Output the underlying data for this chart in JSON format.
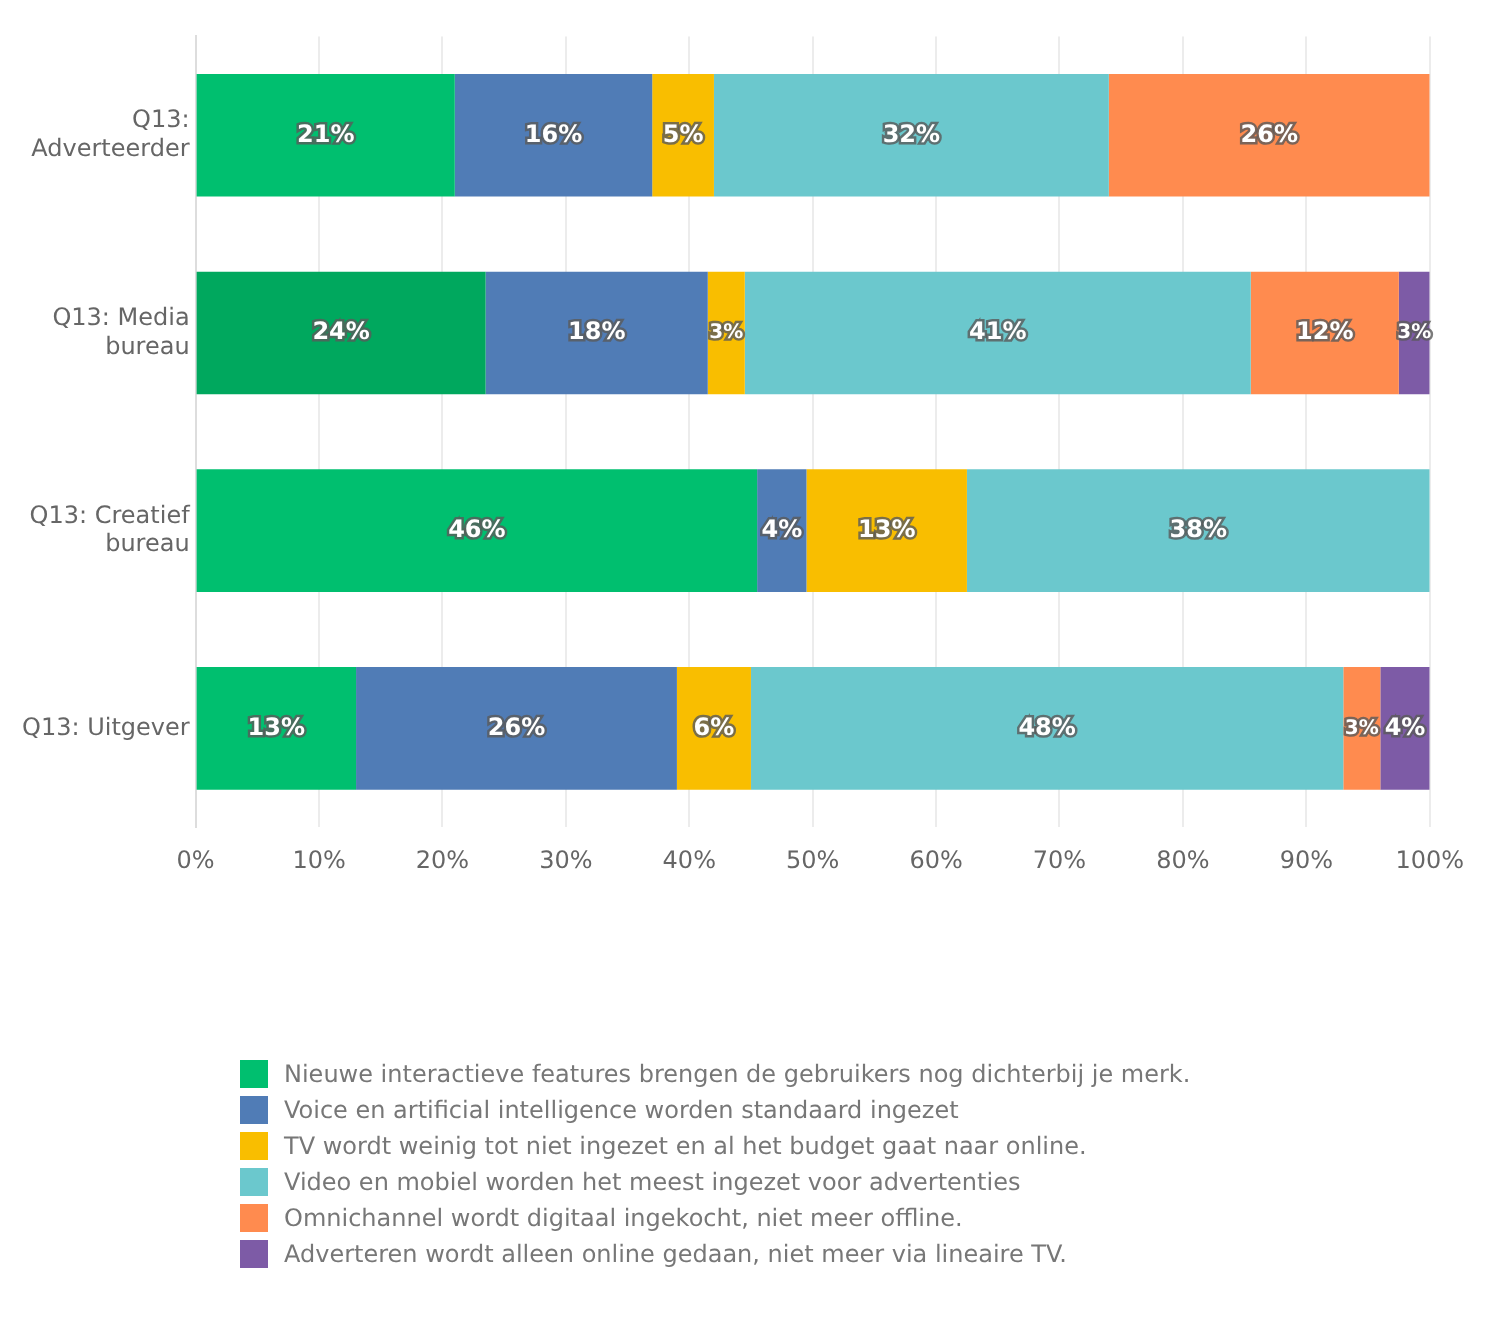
{
  "chart_data": {
    "type": "bar",
    "orientation": "horizontal",
    "stacked": true,
    "categories": [
      "Q13: Adverteerder",
      "Q13: Media bureau",
      "Q13: Creatief bureau",
      "Q13: Uitgever"
    ],
    "series": [
      {
        "name": "Nieuwe interactieve features brengen de gebruikers nog dichterbij je merk.",
        "color": "#00bf6f",
        "colors": [
          "#00bf6f",
          "#00a85e",
          "#00bf6f",
          "#00bf6f"
        ],
        "values": [
          21,
          23.5,
          45.5,
          13
        ],
        "value_labels": [
          "21%",
          "24%",
          "46%",
          "13%"
        ]
      },
      {
        "name": "Voice en artificial intelligence worden standaard ingezet",
        "color": "#507cb6",
        "values": [
          16,
          18,
          4,
          26
        ],
        "value_labels": [
          "16%",
          "18%",
          "4%",
          "26%"
        ]
      },
      {
        "name": "TV wordt weinig tot niet ingezet en al het budget gaat naar online.",
        "color": "#f9be00",
        "values": [
          5,
          3,
          13,
          6
        ],
        "value_labels": [
          "5%",
          "3%",
          "13%",
          "6%"
        ]
      },
      {
        "name": "Video en mobiel worden het meest ingezet voor advertenties",
        "color": "#6bc8cd",
        "values": [
          32,
          41,
          37.5,
          48
        ],
        "value_labels": [
          "32%",
          "41%",
          "38%",
          "48%"
        ]
      },
      {
        "name": "Omnichannel wordt digitaal ingekocht, niet meer offline.",
        "color": "#ff8b4f",
        "values": [
          26,
          12,
          null,
          3
        ],
        "value_labels": [
          "26%",
          "12%",
          null,
          "3%"
        ]
      },
      {
        "name": "Adverteren wordt alleen online gedaan, niet meer via lineaire TV.",
        "color": "#7d5ba6",
        "values": [
          null,
          2.5,
          null,
          4
        ],
        "value_labels": [
          null,
          "3%",
          null,
          "4%"
        ]
      }
    ],
    "xlim": [
      0,
      100
    ],
    "xticks": [
      {
        "value": 0,
        "label": "0%"
      },
      {
        "value": 10,
        "label": "10%"
      },
      {
        "value": 20,
        "label": "20%"
      },
      {
        "value": 30,
        "label": "30%"
      },
      {
        "value": 40,
        "label": "40%"
      },
      {
        "value": 50,
        "label": "50%"
      },
      {
        "value": 60,
        "label": "60%"
      },
      {
        "value": 70,
        "label": "70%"
      },
      {
        "value": 80,
        "label": "80%"
      },
      {
        "value": 90,
        "label": "90%"
      },
      {
        "value": 100,
        "label": "100%"
      }
    ],
    "grid": "x",
    "legend": "bottom"
  }
}
